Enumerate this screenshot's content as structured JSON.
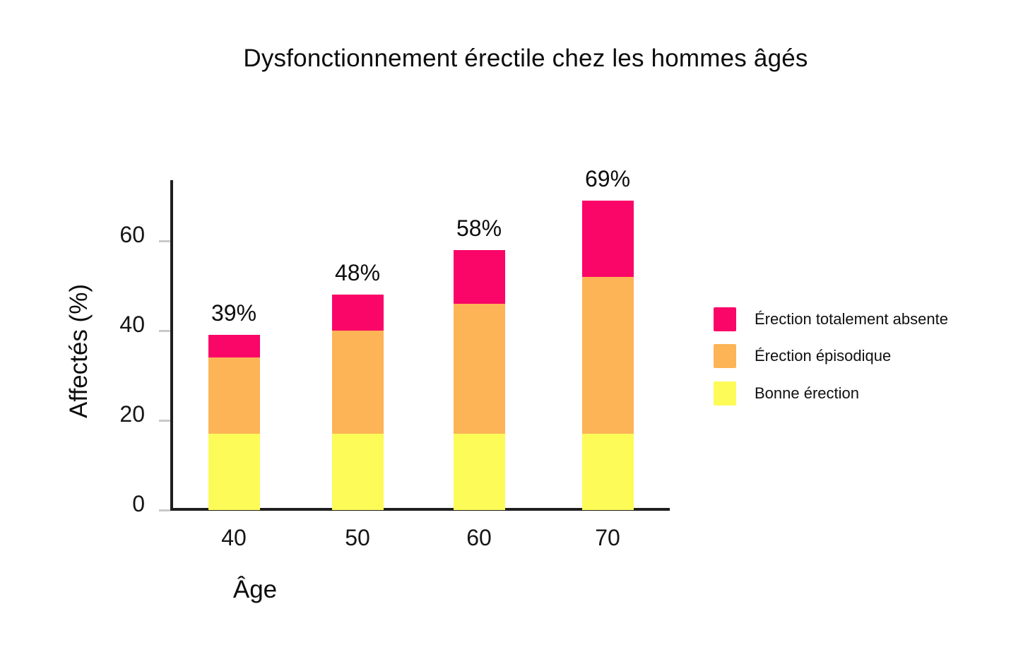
{
  "page": {
    "background": "#ffffff"
  },
  "chart_data": {
    "type": "bar",
    "stacked": true,
    "title": "Dysfonctionnement érectile chez les hommes âgés",
    "xlabel": "Âge",
    "ylabel": "Affectés (%)",
    "categories": [
      "40",
      "50",
      "60",
      "70"
    ],
    "series": [
      {
        "name": "Bonne érection",
        "color": "#FDFB58",
        "values": [
          17,
          17,
          17,
          17
        ]
      },
      {
        "name": "Érection épisodique",
        "color": "#FCB456",
        "values": [
          17,
          23,
          29,
          35
        ]
      },
      {
        "name": "Érection totalement absente",
        "color": "#FA0568",
        "values": [
          5,
          8,
          12,
          17
        ]
      }
    ],
    "totals": [
      39,
      48,
      58,
      69
    ],
    "total_labels": [
      "39%",
      "48%",
      "58%",
      "69%"
    ],
    "y_ticks": [
      0,
      20,
      40,
      60
    ],
    "ylim": [
      0,
      73
    ],
    "grid": false,
    "legend_position": "right",
    "legend_order": [
      "Érection totalement absente",
      "Érection épisodique",
      "Bonne érection"
    ],
    "axis_color": "#1f1f1f",
    "tick_color": "#c9c9c9",
    "text_color": "#111111"
  }
}
